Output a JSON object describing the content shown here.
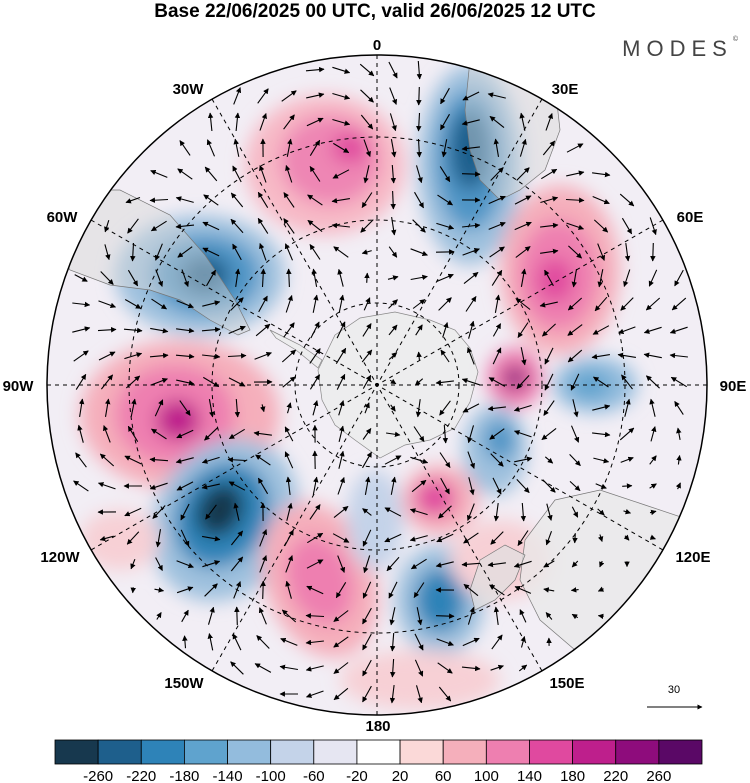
{
  "title": "Base 22/06/2025 00 UTC, valid 26/06/2025 12 UTC",
  "logo": "MODES",
  "logo_mark": "©",
  "longitude_labels": {
    "lon_0": "0",
    "lon_30E": "30E",
    "lon_60E": "60E",
    "lon_90E": "90E",
    "lon_120E": "120E",
    "lon_150E": "150E",
    "lon_180": "180",
    "lon_150W": "150W",
    "lon_120W": "120W",
    "lon_90W": "90W",
    "lon_60W": "60W",
    "lon_30W": "30W"
  },
  "reference_vector_label": "30",
  "colorbar": {
    "colors": [
      "#17384e",
      "#1e5f8c",
      "#2e83b8",
      "#5fa3ce",
      "#93bcdd",
      "#c4d3e9",
      "#e6e6f2",
      "#ffffff",
      "#fbd9d8",
      "#f5afbb",
      "#ee7fb0",
      "#e0499f",
      "#be1f8c",
      "#8e0c7c",
      "#5a0866"
    ],
    "tick_labels": [
      "-260",
      "-220",
      "-180",
      "-140",
      "-100",
      "-60",
      "-20",
      "20",
      "60",
      "100",
      "140",
      "180",
      "220",
      "260"
    ]
  },
  "anomaly_centers": [
    {
      "name": "positive-center-south-atlantic-north",
      "sign": "positive"
    },
    {
      "name": "negative-center-south-atlantic-east",
      "sign": "negative"
    },
    {
      "name": "positive-center-indian-ocean-west",
      "sign": "positive"
    },
    {
      "name": "negative-center-south-america",
      "sign": "negative"
    },
    {
      "name": "positive-center-east-pacific",
      "sign": "positive"
    },
    {
      "name": "positive-center-indian-ocean-south",
      "sign": "positive"
    },
    {
      "name": "negative-center-indian-ocean-south",
      "sign": "negative"
    },
    {
      "name": "negative-center-south-pacific",
      "sign": "negative"
    },
    {
      "name": "positive-center-south-pacific",
      "sign": "positive"
    },
    {
      "name": "negative-center-near-new-zealand",
      "sign": "negative"
    },
    {
      "name": "negative-center-indian-ocean-east",
      "sign": "negative"
    },
    {
      "name": "positive-center-ross-sea",
      "sign": "positive"
    }
  ]
}
